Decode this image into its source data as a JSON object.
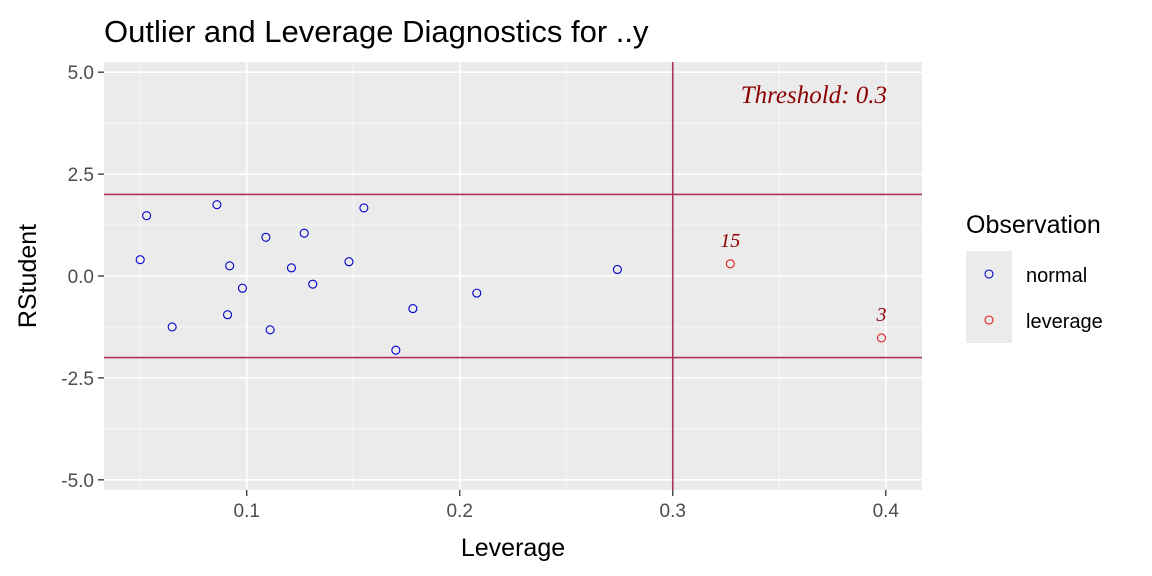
{
  "chart_data": {
    "type": "scatter",
    "title": "Outlier and Leverage Diagnostics for ..y",
    "xlabel": "Leverage",
    "ylabel": "RStudent",
    "xlim": [
      0.033,
      0.417
    ],
    "ylim": [
      -5.25,
      5.25
    ],
    "x_ticks": [
      0.1,
      0.2,
      0.3,
      0.4
    ],
    "x_tick_labels": [
      "0.1",
      "0.2",
      "0.3",
      "0.4"
    ],
    "y_ticks": [
      -5,
      -2.5,
      0,
      2.5,
      5
    ],
    "y_tick_labels": [
      "-5.0",
      "-2.5",
      "0.0",
      "2.5",
      "5.0"
    ],
    "grid": true,
    "legend": {
      "title": "Observation",
      "position": "right",
      "entries": [
        {
          "label": "normal",
          "color": "#0000cd"
        },
        {
          "label": "leverage",
          "color": "#e31a1c"
        }
      ]
    },
    "reference_lines": {
      "horizontal": [
        2,
        -2
      ],
      "vertical": [
        0.3
      ],
      "color": "#b03060"
    },
    "annotation": {
      "text": "Threshold: 0.3"
    },
    "series": [
      {
        "name": "normal",
        "color": "#0000cd",
        "points": [
          {
            "x": 0.053,
            "y": 1.48
          },
          {
            "x": 0.05,
            "y": 0.4
          },
          {
            "x": 0.086,
            "y": 1.75
          },
          {
            "x": 0.065,
            "y": -1.25
          },
          {
            "x": 0.091,
            "y": -0.95
          },
          {
            "x": 0.092,
            "y": 0.25
          },
          {
            "x": 0.098,
            "y": -0.3
          },
          {
            "x": 0.109,
            "y": 0.95
          },
          {
            "x": 0.111,
            "y": -1.32
          },
          {
            "x": 0.121,
            "y": 0.2
          },
          {
            "x": 0.127,
            "y": 1.05
          },
          {
            "x": 0.131,
            "y": -0.2
          },
          {
            "x": 0.148,
            "y": 0.35
          },
          {
            "x": 0.155,
            "y": 1.67
          },
          {
            "x": 0.17,
            "y": -1.82
          },
          {
            "x": 0.178,
            "y": -0.8
          },
          {
            "x": 0.208,
            "y": -0.42
          },
          {
            "x": 0.274,
            "y": 0.16
          }
        ]
      },
      {
        "name": "leverage",
        "color": "#e31a1c",
        "points": [
          {
            "x": 0.327,
            "y": 0.3,
            "label": "15"
          },
          {
            "x": 0.398,
            "y": -1.52,
            "label": "3"
          }
        ]
      }
    ]
  }
}
